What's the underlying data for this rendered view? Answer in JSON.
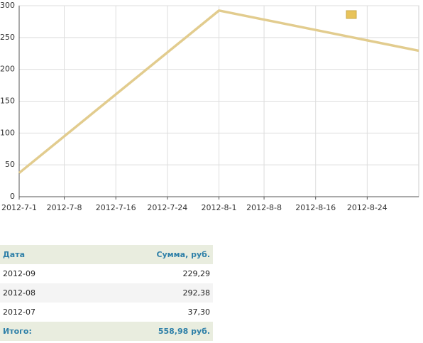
{
  "chart_data": {
    "type": "line",
    "x": [
      "2012-07",
      "2012-08",
      "2012-09"
    ],
    "series": [
      {
        "color": "#e2cc8e",
        "values": [
          37.3,
          292.38,
          229.29
        ]
      }
    ],
    "xlim": [
      "2012-07",
      "2012-09"
    ],
    "xticks": [
      "2012-7-1",
      "2012-7-8",
      "2012-7-16",
      "2012-7-24",
      "2012-8-1",
      "2012-8-8",
      "2012-8-16",
      "2012-8-24"
    ],
    "ylim": [
      0,
      300
    ],
    "yticks": [
      0,
      50,
      100,
      150,
      200,
      250,
      300
    ],
    "grid": true
  },
  "table": {
    "header": [
      "Дата",
      "Сумма, руб."
    ],
    "rows": [
      [
        "2012-09",
        "229,29"
      ],
      [
        "2012-08",
        "292,38"
      ],
      [
        "2012-07",
        "37,30"
      ]
    ],
    "footer": [
      "Итого:",
      "558,98 руб."
    ]
  }
}
